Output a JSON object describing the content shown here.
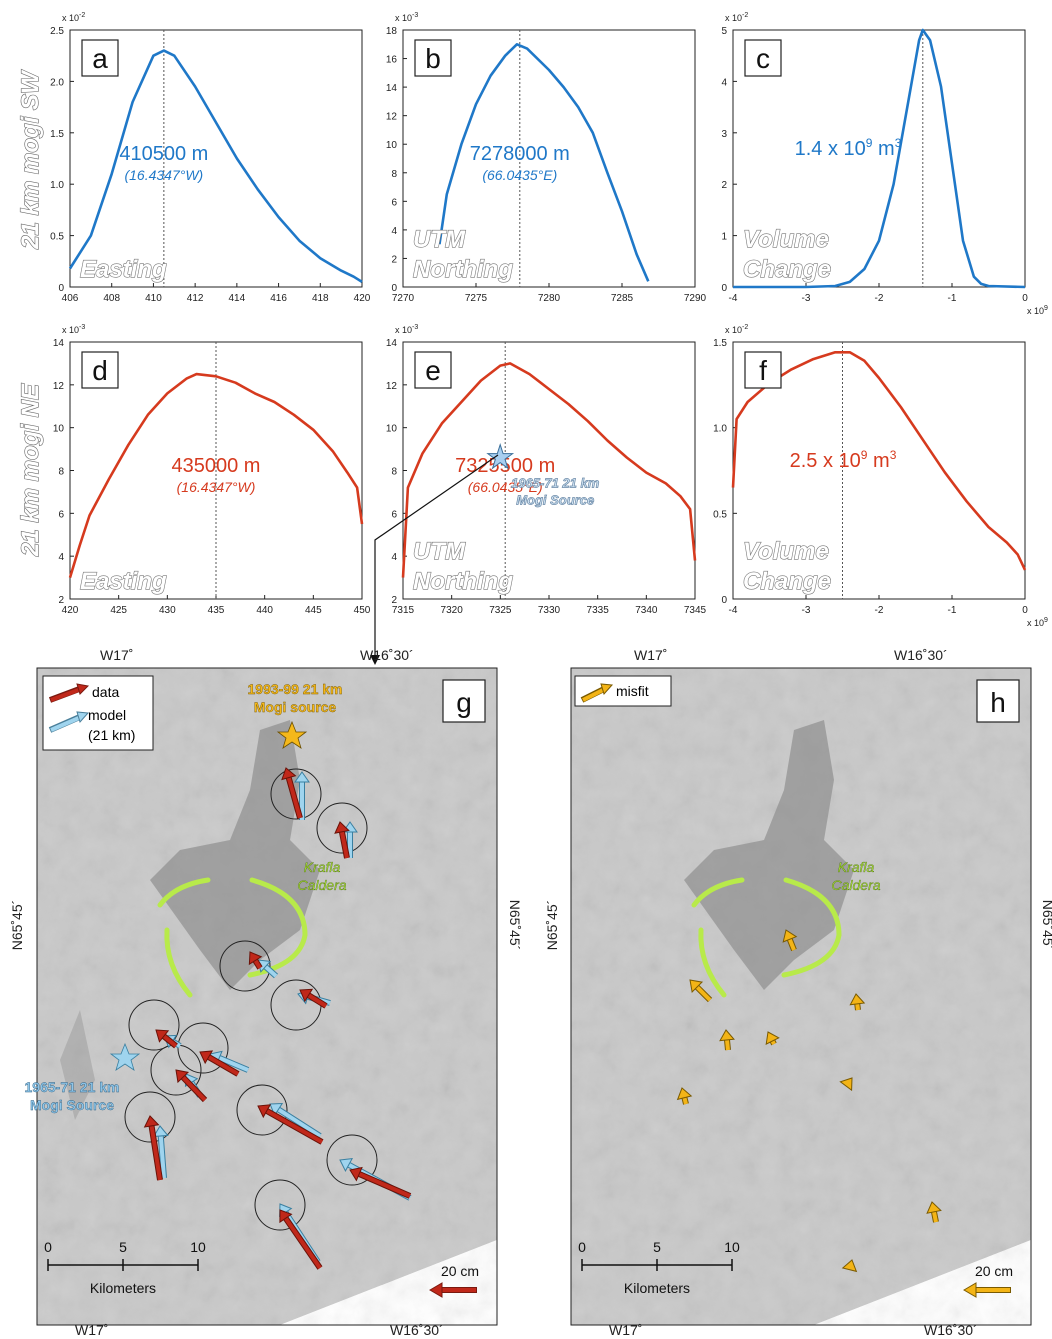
{
  "row_labels": {
    "top": "21 km mogi  SW",
    "middle": "21 km mogi  NE"
  },
  "colors": {
    "sw": "#1f78c8",
    "ne": "#d63a1e",
    "model": "#9fd4ee",
    "data": "#c0281a",
    "misfit": "#f3b416",
    "caldera": "#b8ea4a"
  },
  "chart_data": [
    {
      "id": "a",
      "type": "line",
      "panel_letter": "a",
      "color": "#1f78c8",
      "xlim": [
        406,
        420
      ],
      "xticks": [
        406,
        408,
        410,
        412,
        414,
        416,
        418,
        420
      ],
      "ylim": [
        0,
        2.5
      ],
      "yticks": [
        "0",
        "0.5",
        "1.0",
        "1.5",
        "2.0",
        "2.5"
      ],
      "y_exponent": "x 10-2",
      "peak_x": 410.5,
      "annotation": "410500 m",
      "annotation_sub": "(16.4347°W)",
      "label_lines": [
        "Easting"
      ],
      "x": [
        406,
        407,
        408,
        409,
        410,
        410.5,
        411,
        412,
        413,
        414,
        415,
        416,
        417,
        418,
        419,
        419.6,
        420
      ],
      "y": [
        0.18,
        0.5,
        1.1,
        1.8,
        2.25,
        2.3,
        2.25,
        1.95,
        1.6,
        1.25,
        0.95,
        0.68,
        0.45,
        0.28,
        0.16,
        0.1,
        0.05
      ]
    },
    {
      "id": "b",
      "type": "line",
      "panel_letter": "b",
      "color": "#1f78c8",
      "xlim": [
        7270,
        7290
      ],
      "xticks": [
        7270,
        7275,
        7280,
        7285,
        7290
      ],
      "ylim": [
        0,
        18
      ],
      "yticks": [
        "0",
        "2",
        "4",
        "6",
        "8",
        "10",
        "12",
        "14",
        "16",
        "18"
      ],
      "y_exponent": "x 10-3",
      "peak_x": 7278,
      "annotation": "7278000 m",
      "annotation_sub": "(66.0435°E)",
      "label_lines": [
        "UTM",
        "Northing"
      ],
      "x": [
        7272.5,
        7273,
        7274,
        7275,
        7276,
        7277,
        7277.8,
        7278.5,
        7280,
        7281,
        7282,
        7283,
        7284,
        7285,
        7286,
        7286.8
      ],
      "y": [
        3,
        6.5,
        10,
        12.8,
        14.8,
        16.2,
        17,
        16.7,
        15.2,
        14,
        12.6,
        10.8,
        8,
        5.3,
        2.3,
        0.4
      ]
    },
    {
      "id": "c",
      "type": "line",
      "panel_letter": "c",
      "color": "#1f78c8",
      "xlim": [
        -4,
        0
      ],
      "xticks": [
        "-4",
        "-3",
        "-2",
        "-1",
        "0"
      ],
      "x_exponent": "x 10 9",
      "ylim": [
        0,
        5
      ],
      "yticks": [
        "0",
        "1",
        "2",
        "3",
        "4",
        "5"
      ],
      "y_exponent": "x 10-2",
      "peak_x": -1.4,
      "annotation": "1.4 x 10 9 m 3",
      "label_lines": [
        "Volume",
        "Change"
      ],
      "x": [
        -4,
        -3,
        -2.6,
        -2.4,
        -2.2,
        -2.0,
        -1.8,
        -1.6,
        -1.45,
        -1.4,
        -1.3,
        -1.15,
        -1.0,
        -0.85,
        -0.7,
        -0.6,
        -0.5,
        0
      ],
      "y": [
        0,
        0,
        0.02,
        0.1,
        0.35,
        0.9,
        2.0,
        3.6,
        4.8,
        5.0,
        4.8,
        3.9,
        2.4,
        0.9,
        0.2,
        0.06,
        0.02,
        0
      ]
    },
    {
      "id": "d",
      "type": "line",
      "panel_letter": "d",
      "color": "#d63a1e",
      "xlim": [
        420,
        450
      ],
      "xticks": [
        420,
        425,
        430,
        435,
        440,
        445,
        450
      ],
      "ylim": [
        2,
        14
      ],
      "yticks": [
        "2",
        "4",
        "6",
        "8",
        "10",
        "12",
        "14"
      ],
      "y_exponent": "x 10-3",
      "peak_x": 435,
      "annotation": "435000 m",
      "annotation_sub": "(16.4347°W)",
      "label_lines": [
        "Easting"
      ],
      "x": [
        420,
        421,
        422,
        424,
        426,
        428,
        430,
        432,
        433,
        435,
        437,
        439,
        441,
        443,
        445,
        447,
        448.5,
        449.5,
        450
      ],
      "y": [
        3,
        4.5,
        5.9,
        7.6,
        9.2,
        10.6,
        11.6,
        12.3,
        12.5,
        12.4,
        12.1,
        11.6,
        11.2,
        10.6,
        9.9,
        8.9,
        7.9,
        7.2,
        5.5
      ]
    },
    {
      "id": "e",
      "type": "line",
      "panel_letter": "e",
      "color": "#d63a1e",
      "xlim": [
        7315,
        7345
      ],
      "xticks": [
        7315,
        7320,
        7325,
        7330,
        7335,
        7340,
        7345
      ],
      "ylim": [
        2,
        14
      ],
      "yticks": [
        "2",
        "4",
        "6",
        "8",
        "10",
        "12",
        "14"
      ],
      "y_exponent": "x 10-3",
      "peak_x": 7325.5,
      "annotation": "7325500 m",
      "annotation_sub": "(66.0435°E)",
      "label_lines": [
        "UTM",
        "Northing"
      ],
      "marker_label": [
        "1965-71 21 km",
        "Mogi Source"
      ],
      "x": [
        7315,
        7315.5,
        7317,
        7319,
        7321,
        7323,
        7325,
        7326,
        7328,
        7330,
        7332,
        7334,
        7336,
        7338,
        7340,
        7342,
        7343.5,
        7344.5,
        7345
      ],
      "y": [
        3,
        7.2,
        8.8,
        10.2,
        11.2,
        12.2,
        12.9,
        13,
        12.5,
        11.8,
        11.1,
        10.3,
        9.4,
        8.6,
        7.9,
        7.4,
        6.8,
        6.2,
        3.8
      ]
    },
    {
      "id": "f",
      "type": "line",
      "panel_letter": "f",
      "color": "#d63a1e",
      "xlim": [
        -4,
        0
      ],
      "xticks": [
        "-4",
        "-3",
        "-2",
        "-1",
        "0"
      ],
      "x_exponent": "x 10 9",
      "ylim": [
        0,
        1.5
      ],
      "yticks": [
        "0",
        "0.5",
        "1.0",
        "1.5"
      ],
      "y_exponent": "x 10-2",
      "peak_x": -2.5,
      "annotation": "2.5 x 10 9 m 3",
      "label_lines": [
        "Volume",
        "Change"
      ],
      "x": [
        -4,
        -3.95,
        -3.8,
        -3.5,
        -3.2,
        -2.9,
        -2.6,
        -2.4,
        -2.2,
        -2.0,
        -1.7,
        -1.4,
        -1.1,
        -0.8,
        -0.5,
        -0.25,
        -0.1,
        0
      ],
      "y": [
        0.65,
        1.05,
        1.15,
        1.26,
        1.34,
        1.4,
        1.44,
        1.44,
        1.39,
        1.29,
        1.12,
        0.93,
        0.74,
        0.57,
        0.42,
        0.33,
        0.26,
        0.17
      ]
    }
  ],
  "map_g": {
    "panel_letter": "g",
    "coords": {
      "top_left": "W17˚",
      "top_right": "W16˚30´",
      "bottom_left": "W17˚",
      "bottom_right": "W16˚30´",
      "left": "N65˚45´",
      "right": "N65˚45´"
    },
    "legend": {
      "data": "data",
      "model_line1": "model",
      "model_line2": "(21 km)"
    },
    "source_label_top": [
      "1993-99 21 km",
      "Mogi source"
    ],
    "source_label_bottom": [
      "1965-71 21 km",
      "Mogi Source"
    ],
    "caldera_label": [
      "Krafla",
      "Caldera"
    ],
    "scale": {
      "ticks": [
        "0",
        "5",
        "10"
      ],
      "unit": "Kilometers",
      "arrow_label": "20 cm"
    }
  },
  "map_h": {
    "panel_letter": "h",
    "coords": {
      "top_left": "W17˚",
      "top_right": "W16˚30´",
      "bottom_left": "W17˚",
      "bottom_right": "W16˚30´",
      "left": "N65˚45´",
      "right": "N65˚45´"
    },
    "legend": {
      "misfit": "misfit"
    },
    "caldera_label": [
      "Krafla",
      "Caldera"
    ],
    "scale": {
      "ticks": [
        "0",
        "5",
        "10"
      ],
      "unit": "Kilometers",
      "arrow_label": "20 cm"
    }
  }
}
